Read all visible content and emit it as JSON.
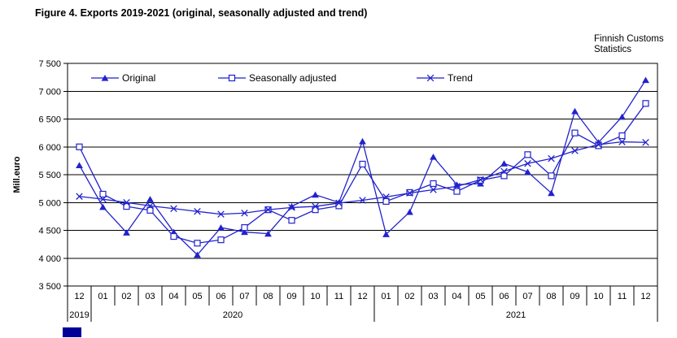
{
  "title": "Figure 4. Exports 2019-2021 (original, seasonally adjusted and trend)",
  "source": {
    "line1": "Finnish Customs",
    "line2": "Statistics"
  },
  "colors": {
    "series": "#2222cc",
    "axis": "#000000",
    "footer_box": "#000099"
  },
  "chart_data": {
    "type": "line",
    "title": "Figure 4. Exports 2019-2021 (original, seasonally adjusted and trend)",
    "ylabel": "Mill.euro",
    "ylim": [
      3500,
      7500
    ],
    "ytick_interval": 500,
    "ytick_labels": [
      "3 500",
      "4 000",
      "4 500",
      "5 000",
      "5 500",
      "6 000",
      "6 500",
      "7 000",
      "7 500"
    ],
    "grid": true,
    "legend_position": "top-inside",
    "categories": [
      "12",
      "01",
      "02",
      "03",
      "04",
      "05",
      "06",
      "07",
      "08",
      "09",
      "10",
      "11",
      "12",
      "01",
      "02",
      "03",
      "04",
      "05",
      "06",
      "07",
      "08",
      "09",
      "10",
      "11",
      "12"
    ],
    "year_groups": [
      {
        "label": "2019",
        "months": 1
      },
      {
        "label": "2020",
        "months": 12
      },
      {
        "label": "2021",
        "months": 12
      }
    ],
    "series": [
      {
        "name": "Original",
        "marker": "triangle-filled",
        "values": [
          5670,
          4920,
          4460,
          5060,
          4470,
          4060,
          4550,
          4470,
          4440,
          4930,
          5140,
          5000,
          6100,
          4430,
          4830,
          5820,
          5320,
          5340,
          5700,
          5550,
          5170,
          6640,
          6080,
          6540,
          7200
        ]
      },
      {
        "name": "Seasonally adjusted",
        "marker": "square-open",
        "values": [
          6000,
          5150,
          4930,
          4860,
          4390,
          4270,
          4330,
          4550,
          4870,
          4680,
          4870,
          4940,
          5690,
          5020,
          5180,
          5340,
          5200,
          5400,
          5480,
          5860,
          5480,
          6250,
          6020,
          6200,
          6780
        ]
      },
      {
        "name": "Trend",
        "marker": "x-cross",
        "values": [
          5110,
          5060,
          5000,
          4940,
          4890,
          4840,
          4790,
          4810,
          4870,
          4910,
          4930,
          4990,
          5040,
          5100,
          5170,
          5230,
          5290,
          5410,
          5560,
          5700,
          5790,
          5930,
          6040,
          6090,
          6080
        ]
      }
    ]
  }
}
